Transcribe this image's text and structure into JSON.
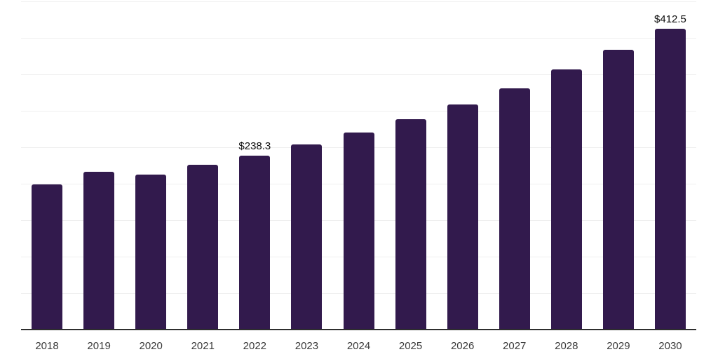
{
  "chart_data": {
    "type": "bar",
    "title": "",
    "xlabel": "",
    "ylabel": "",
    "categories": [
      "2018",
      "2019",
      "2020",
      "2021",
      "2022",
      "2023",
      "2024",
      "2025",
      "2026",
      "2027",
      "2028",
      "2029",
      "2030"
    ],
    "values": [
      199.3,
      216.6,
      212.8,
      225.6,
      238.3,
      253.7,
      270.5,
      288.7,
      308.9,
      330.7,
      356.4,
      383.6,
      412.5
    ],
    "data_labels": [
      {
        "category": "2022",
        "text": "$238.3"
      },
      {
        "category": "2030",
        "text": "$412.5"
      }
    ],
    "ylim": [
      0,
      450
    ],
    "gridline_step": 50,
    "grid": true,
    "legend": false,
    "y_tick_labels_visible": false,
    "bar_color": "#321a4d",
    "gridline_color": "#efefef",
    "axis_line_color": "#2e2e2e",
    "data_label_color": "#0d0d0d",
    "tick_label_color": "#3a3a3a"
  }
}
